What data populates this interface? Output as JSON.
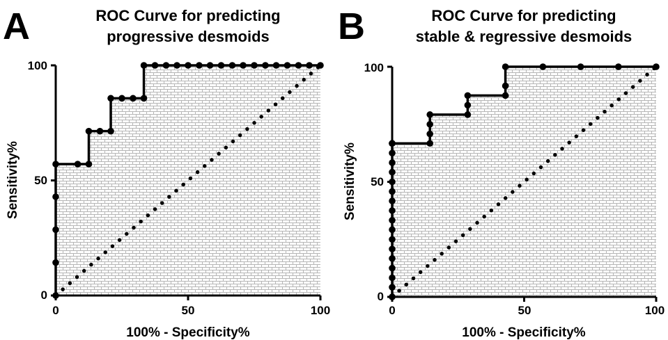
{
  "chart_data": [
    {
      "type": "line",
      "panel_label": "A",
      "title_lines": [
        "ROC Curve for predicting",
        "progressive desmoids"
      ],
      "xlabel": "100% - Specificity%",
      "ylabel": "Sensitivity%",
      "xlim": [
        0,
        100
      ],
      "ylim": [
        0,
        100
      ],
      "xticks": [
        "0",
        "50",
        "100"
      ],
      "yticks": [
        "0",
        "50",
        "100"
      ],
      "area_fill": "hatched",
      "series": [
        {
          "style": "solid-with-markers",
          "x": [
            0,
            0,
            0,
            0,
            0,
            8.3,
            12.5,
            12.5,
            16.7,
            20.8,
            20.8,
            25,
            29.2,
            33.3,
            33.3,
            37.5,
            41.7,
            45.8,
            50,
            54.2,
            58.3,
            62.5,
            66.7,
            70.8,
            75,
            79.2,
            83.3,
            87.5,
            91.7,
            95.8,
            100
          ],
          "y": [
            0,
            14.3,
            28.6,
            42.9,
            57.1,
            57.1,
            57.1,
            71.4,
            71.4,
            71.4,
            85.7,
            85.7,
            85.7,
            85.7,
            100,
            100,
            100,
            100,
            100,
            100,
            100,
            100,
            100,
            100,
            100,
            100,
            100,
            100,
            100,
            100,
            100
          ]
        },
        {
          "style": "dotted-reference",
          "x": [
            0,
            100
          ],
          "y": [
            0,
            100
          ]
        }
      ]
    },
    {
      "type": "line",
      "panel_label": "B",
      "title_lines": [
        "ROC Curve for predicting",
        "stable & regressive desmoids"
      ],
      "xlabel": "100% - Specificity%",
      "ylabel": "Sensitivity%",
      "xlim": [
        0,
        100
      ],
      "ylim": [
        0,
        100
      ],
      "xticks": [
        "0",
        "50",
        "100"
      ],
      "yticks": [
        "0",
        "50",
        "100"
      ],
      "area_fill": "hatched",
      "series": [
        {
          "style": "solid-with-markers",
          "x": [
            0,
            0,
            0,
            0,
            0,
            0,
            0,
            0,
            0,
            0,
            0,
            0,
            0,
            0,
            0,
            0,
            0,
            0,
            0,
            14.3,
            14.3,
            14.3,
            14.3,
            28.6,
            28.6,
            28.6,
            42.9,
            42.9,
            42.9,
            57.1,
            71.4,
            85.7,
            100
          ],
          "y": [
            0,
            4.2,
            8.3,
            12.5,
            16.7,
            20.8,
            25,
            29.2,
            33.3,
            37.5,
            41.7,
            45.8,
            50,
            54.2,
            58.3,
            62.5,
            66.7,
            66.7,
            66.7,
            66.7,
            70.8,
            75,
            79.2,
            79.2,
            83.3,
            87.5,
            87.5,
            91.7,
            100,
            100,
            100,
            100,
            100
          ]
        },
        {
          "style": "dotted-reference",
          "x": [
            0,
            100
          ],
          "y": [
            0,
            100
          ]
        }
      ]
    }
  ]
}
